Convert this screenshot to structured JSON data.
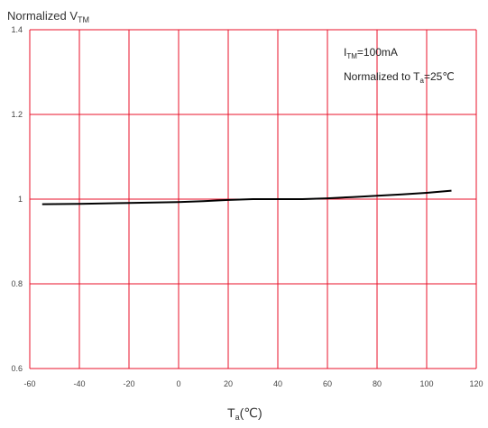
{
  "chart_data": {
    "type": "line",
    "title": {
      "main": "Normalized V",
      "sub": "TM"
    },
    "xlabel": {
      "main": "T",
      "sub": "a",
      "unit": "(℃)"
    },
    "xlim": [
      -60,
      120
    ],
    "ylim": [
      0.6,
      1.4
    ],
    "x_ticks": [
      -60,
      -40,
      -20,
      0,
      20,
      40,
      60,
      80,
      100,
      120
    ],
    "y_ticks": [
      0.6,
      0.8,
      1,
      1.2,
      1.4
    ],
    "x_tick_labels": [
      "-60",
      "-40",
      "-20",
      "0",
      "20",
      "40",
      "60",
      "80",
      "100",
      "120"
    ],
    "y_tick_labels": [
      "0.6",
      "0.8",
      "1",
      "1.2",
      "1.4"
    ],
    "grid": true,
    "grid_color": "#e8102a",
    "line_color": "#000000",
    "annotation": {
      "line1": {
        "main": "I",
        "sub": "TM",
        "rest": "=100mA"
      },
      "line2": {
        "main": "Normalized to T",
        "sub": "a",
        "rest": "=25℃"
      },
      "position": "top-right"
    },
    "series": [
      {
        "x": [
          -55,
          -40,
          -20,
          0,
          10,
          20,
          30,
          40,
          50,
          60,
          70,
          80,
          90,
          100,
          110
        ],
        "y": [
          0.988,
          0.989,
          0.991,
          0.993,
          0.995,
          0.998,
          1.0,
          1.0,
          1.0,
          1.002,
          1.005,
          1.008,
          1.011,
          1.015,
          1.02
        ]
      }
    ]
  }
}
